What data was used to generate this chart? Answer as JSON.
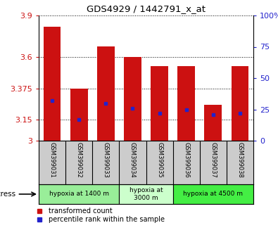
{
  "title": "GDS4929 / 1442791_x_at",
  "samples": [
    "GSM399031",
    "GSM399032",
    "GSM399033",
    "GSM399034",
    "GSM399035",
    "GSM399036",
    "GSM399037",
    "GSM399038"
  ],
  "bar_values": [
    3.82,
    3.375,
    3.68,
    3.6,
    3.535,
    3.535,
    3.26,
    3.535
  ],
  "bar_bottom": 3.0,
  "percentile_ranks": [
    32,
    17,
    30,
    26,
    22,
    25,
    21,
    22
  ],
  "ylim": [
    3.0,
    3.9
  ],
  "yticks": [
    3.0,
    3.15,
    3.375,
    3.6,
    3.9
  ],
  "ytick_labels": [
    "3",
    "3.15",
    "3.375",
    "3.6",
    "3.9"
  ],
  "right_yticks": [
    0,
    25,
    50,
    75,
    100
  ],
  "right_ytick_labels": [
    "0",
    "25",
    "50",
    "75",
    "100%"
  ],
  "bar_color": "#cc1111",
  "dot_color": "#2222cc",
  "bar_width": 0.65,
  "groups": [
    {
      "label": "hypoxia at 1400 m",
      "indices": [
        0,
        1,
        2
      ],
      "color": "#99ee99"
    },
    {
      "label": "hypoxia at\n3000 m",
      "indices": [
        3,
        4
      ],
      "color": "#ccffcc"
    },
    {
      "label": "hypoxia at 4500 m",
      "indices": [
        5,
        6,
        7
      ],
      "color": "#44ee44"
    }
  ],
  "stress_label": "stress",
  "legend_bar_label": "transformed count",
  "legend_dot_label": "percentile rank within the sample",
  "background_color": "#ffffff",
  "tick_color_left": "#cc1111",
  "tick_color_right": "#2222cc",
  "xlabel_area_color": "#cccccc"
}
